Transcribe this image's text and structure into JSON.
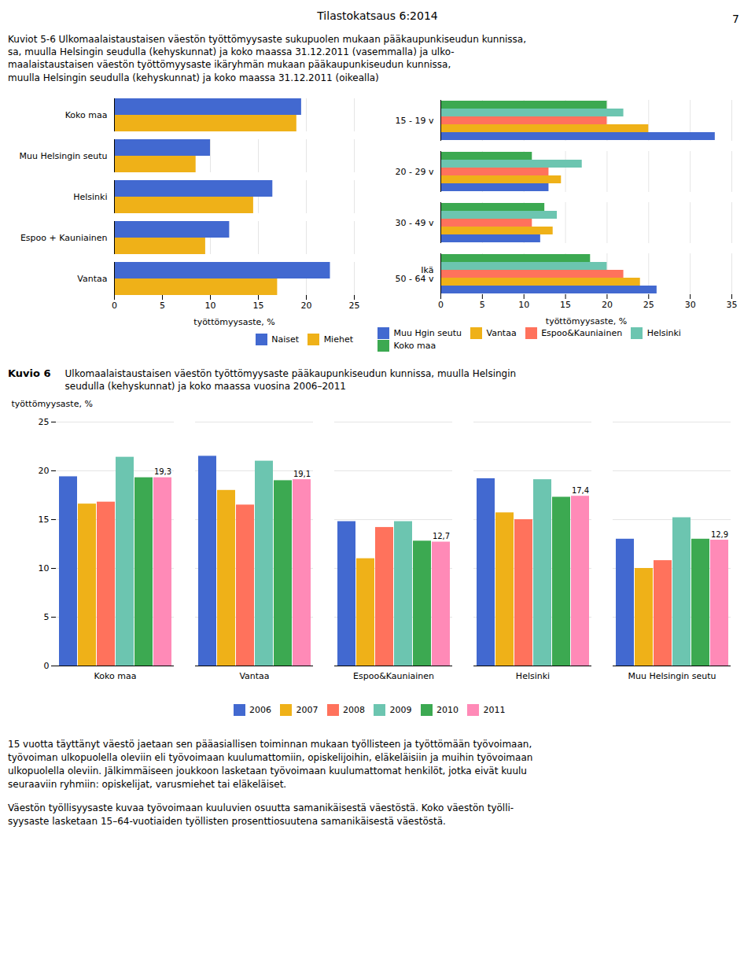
{
  "chart_data": [
    {
      "type": "bar",
      "title": "Kuviot 5-6   Ulkomaalaistaustaisen väestön työttömyysaste sukupuolen mukaan pääkaupunkiseudun kunnissa,\nsa, muulla Helsingin seudulla (kehyskunnat) ja koko maassa 31.12.2011 (vasemmalla) ja ulko-\nmaalaistaustaisen väestön työttömyysaste ikäryhmän mukaan pääkaupunkiseudun kunnissa,\nmuulla Helsingin seudulla (kehyskunnat) ja koko maassa 31.12.2011 (oikealla)",
      "annotations": [
        "Tilastokatsaus 6:2014",
        "7"
      ],
      "orientation": "horizontal",
      "categories": [
        "Vantaa",
        "Espoo + Kauniainen",
        "Helsinki",
        "Muu Helsingin seutu",
        "Koko maa"
      ],
      "series": [
        {
          "name": "Naiset",
          "values": [
            22.5,
            12.0,
            16.5,
            10.0,
            19.5
          ]
        },
        {
          "name": "Miehet",
          "values": [
            17.0,
            9.5,
            14.5,
            8.5,
            19.0
          ]
        }
      ],
      "xlabel": "työttömyysaste, %",
      "xlim": [
        0,
        25
      ],
      "xticks": [
        0,
        5,
        10,
        15,
        20,
        25
      ],
      "grid": true,
      "legend": "lower right"
    },
    {
      "type": "bar",
      "orientation": "horizontal",
      "categories": [
        "Ikä\n50 - 64 v",
        "30 - 49 v",
        "20 - 29 v",
        "15 - 19 v"
      ],
      "series": [
        {
          "name": "Muu Hgin seutu",
          "values": [
            26.0,
            12.0,
            13.0,
            33.0
          ]
        },
        {
          "name": "Vantaa",
          "values": [
            24.0,
            13.5,
            14.5,
            25.0
          ]
        },
        {
          "name": "Espoo&Kauniainen",
          "values": [
            22.0,
            11.0,
            13.0,
            20.0
          ]
        },
        {
          "name": "Helsinki",
          "values": [
            20.0,
            14.0,
            17.0,
            22.0
          ]
        },
        {
          "name": "Koko maa",
          "values": [
            18.0,
            12.5,
            11.0,
            20.0
          ]
        }
      ],
      "xlabel": "työttömyysaste, %",
      "xlim": [
        0,
        35
      ],
      "xticks": [
        0,
        5,
        10,
        15,
        20,
        25,
        30,
        35
      ],
      "grid": true,
      "legend": "lower right"
    },
    {
      "type": "bar",
      "title": "Kuvio 6",
      "subtitle": "Ulkomaalaistaustaisen väestön työttömyysaste pääkaupunkiseudun kunnissa, muulla Helsingin\nseudulla (kehyskunnat) ja koko maassa vuosina 2006–2011",
      "categories": [
        "Koko maa",
        "Vantaa",
        "Espoo&Kauniainen",
        "Helsinki",
        "Muu Helsingin seutu"
      ],
      "series": [
        {
          "name": "2006",
          "values": [
            19.4,
            21.5,
            14.8,
            19.2,
            13.0
          ]
        },
        {
          "name": "2007",
          "values": [
            16.6,
            18.0,
            11.0,
            15.7,
            10.0
          ]
        },
        {
          "name": "2008",
          "values": [
            16.8,
            16.5,
            14.2,
            15.0,
            10.8
          ]
        },
        {
          "name": "2009",
          "values": [
            21.4,
            21.0,
            14.8,
            19.1,
            15.2
          ]
        },
        {
          "name": "2010",
          "values": [
            19.3,
            19.0,
            12.8,
            17.3,
            13.0
          ]
        },
        {
          "name": "2011",
          "values": [
            19.3,
            19.1,
            12.7,
            17.4,
            12.9
          ],
          "data_labels": true,
          "value_labels": [
            "19,3",
            "19,1",
            "12,7",
            "17,4",
            "12,9"
          ]
        }
      ],
      "ylabel": "työttömyysaste, %",
      "ylim": [
        0,
        25
      ],
      "yticks": [
        0,
        5,
        10,
        15,
        20,
        25
      ],
      "grid": true,
      "legend": "bottom",
      "annotations": [
        "15 vuotta täyttänyt väestö jaetaan sen pääasiallisen toiminnan mukaan työllisteen ja työttömään työvoimaan,",
        "työvoiman ulkopuolella oleviin eli työvoimaan kuulumattomiin, opiskelijoihin, eläkeläisiin ja muihin työvoimaan",
        "ulkopuolella oleviin. Jälkimmäiseen joukkoon lasketaan työvoimaan kuulumattomat henkilöt, jotka eivät kuulu",
        "seuraaviin ryhmiin: opiskelijat, varusmiehet tai eläkeläiset.",
        "Väestön työllisyysaste kuvaa työvoimaan kuuluvien osuutta samanikäisestä väestöstä. Koko väestön työlli-",
        "syysaste lasketaan 15–64-vuotiaiden työllisten prosenttiosuutena samanikäisestä väestöstä."
      ]
    }
  ]
}
